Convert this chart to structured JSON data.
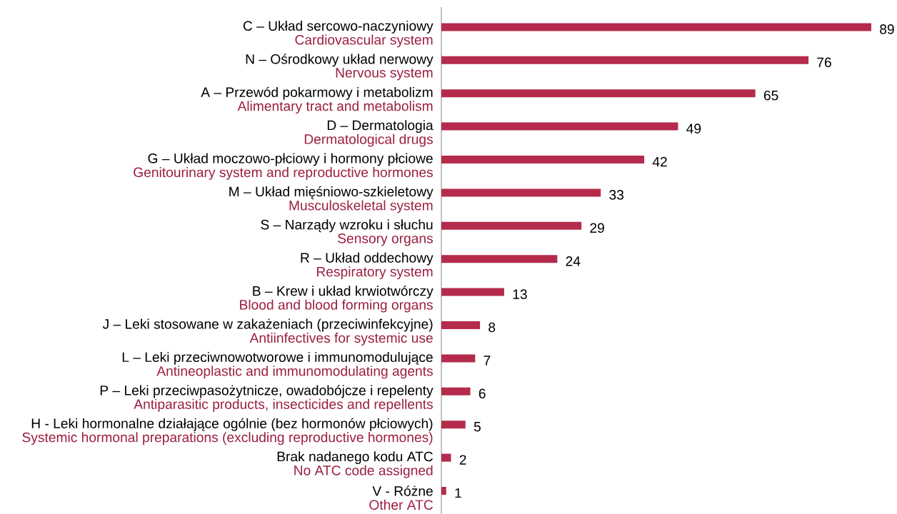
{
  "chart_data": {
    "type": "bar",
    "orientation": "horizontal",
    "categories": [
      "C – Układ sercowo-naczyniowy",
      "N – Ośrodkowy układ nerwowy",
      "A – Przewód pokarmowy i metabolizm",
      "D – Dermatologia",
      "G – Układ moczowo-płciowy i hormony płciowe",
      "M – Układ mięśniowo-szkieletowy",
      "S – Narządy wzroku i słuchu",
      "R – Układ oddechowy",
      "B – Krew i układ krwiotwórczy",
      "J – Leki stosowane w zakażeniach (przeciwinfekcyjne)",
      "L – Leki przeciwnowotworowe i immunomodulujące",
      "P – Leki przeciwpasożytnicze, owadobójcze i repelenty",
      "H - Leki hormonalne działające ogólnie (bez hormonów płciowych)",
      "Brak nadanego kodu ATC",
      "V - Różne"
    ],
    "y2_categories": [
      "Cardiovascular system",
      "Nervous system",
      "Alimentary tract and metabolism",
      "Dermatological drugs",
      "Genitourinary system and reproductive hormones",
      "Musculoskeletal system",
      "Sensory organs",
      "Respiratory system",
      "Blood and blood forming organs",
      "Antiinfectives for systemic use",
      "Antineoplastic and immunomodulating agents",
      "Antiparasitic products, insecticides and repellents",
      "Systemic hormonal preparations (excluding reproductive hormones)",
      "No ATC code assigned",
      "Other ATC"
    ],
    "values": [
      89,
      76,
      65,
      49,
      42,
      33,
      29,
      24,
      13,
      8,
      7,
      6,
      5,
      2,
      1
    ],
    "color": "#b52b4b",
    "data_labels": true
  }
}
